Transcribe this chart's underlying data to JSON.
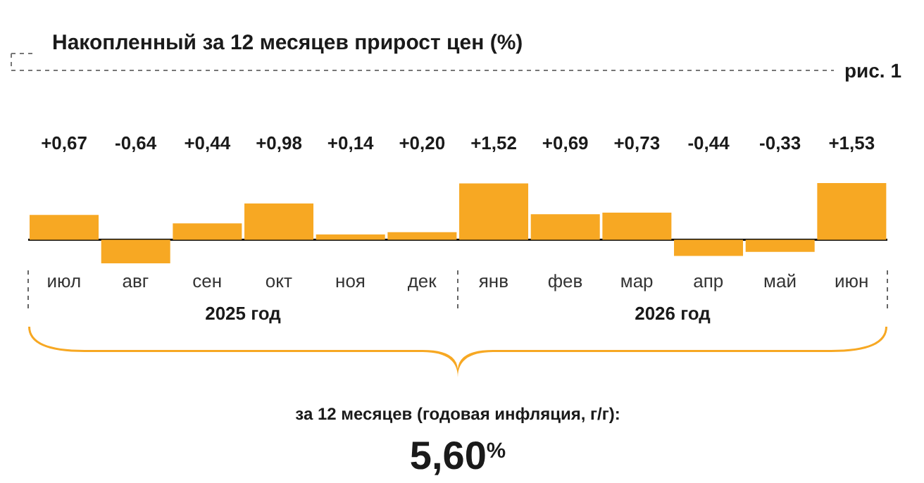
{
  "chart_data": {
    "type": "bar",
    "title": "Накопленный за 12 месяцев прирост цен (%)",
    "categories": [
      "июл",
      "авг",
      "сен",
      "окт",
      "ноя",
      "дек",
      "янв",
      "фев",
      "мар",
      "апр",
      "май",
      "июн"
    ],
    "values": [
      0.67,
      -0.64,
      0.44,
      0.98,
      0.14,
      0.2,
      1.52,
      0.69,
      0.73,
      -0.44,
      -0.33,
      1.53
    ],
    "value_labels": [
      "+0,67",
      "-0,64",
      "+0,44",
      "+0,98",
      "+0,14",
      "+0,20",
      "+1,52",
      "+0,69",
      "+0,73",
      "-0,44",
      "-0,33",
      "+1,53"
    ],
    "color": "#f7a823",
    "annotations": [
      "рис. 1",
      "2025 год",
      "2026 год",
      "за 12 месяцев (годовая инфляция, г/г):",
      "5,60$^{%}$"
    ]
  }
}
